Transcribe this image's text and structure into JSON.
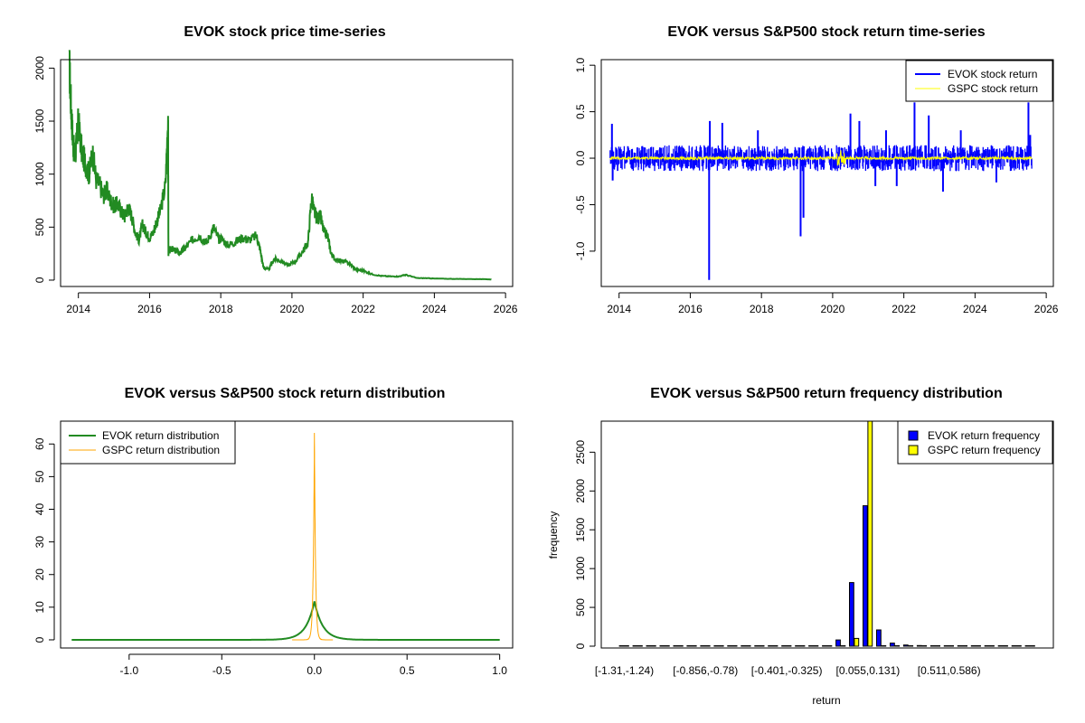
{
  "chart_data": [
    {
      "type": "line",
      "title": "EVOK stock price time-series",
      "xlabel": "",
      "ylabel": "",
      "xlim": [
        2013.5,
        2026.2
      ],
      "ylim": [
        -60,
        2080
      ],
      "x_ticks": [
        2014,
        2016,
        2018,
        2020,
        2022,
        2024,
        2026
      ],
      "y_ticks": [
        0,
        500,
        1000,
        1500,
        2000
      ],
      "colors": {
        "line": "#228B22"
      },
      "series": [
        {
          "x": [
            2013.75,
            2013.8,
            2013.85,
            2013.9,
            2013.95,
            2014.0,
            2014.1,
            2014.2,
            2014.3,
            2014.4,
            2014.5,
            2014.6,
            2014.7,
            2014.8,
            2014.9,
            2015.0,
            2015.1,
            2015.2,
            2015.3,
            2015.4,
            2015.5,
            2015.6,
            2015.7,
            2015.8,
            2015.9,
            2016.0,
            2016.1,
            2016.2,
            2016.3,
            2016.45,
            2016.52,
            2016.53,
            2016.6,
            2016.7,
            2016.85,
            2017.0,
            2017.2,
            2017.4,
            2017.6,
            2017.8,
            2017.95,
            2018.0,
            2018.2,
            2018.4,
            2018.6,
            2018.8,
            2019.0,
            2019.1,
            2019.2,
            2019.35,
            2019.5,
            2019.7,
            2019.9,
            2020.1,
            2020.3,
            2020.45,
            2020.55,
            2020.62,
            2020.7,
            2020.8,
            2020.9,
            2021.0,
            2021.1,
            2021.2,
            2021.4,
            2021.6,
            2021.8,
            2022.0,
            2022.2,
            2022.5,
            2022.8,
            2023.0,
            2023.2,
            2023.5,
            2023.8,
            2024.0,
            2024.5,
            2025.0,
            2025.5,
            2025.6
          ],
          "y": [
            2000,
            1600,
            1300,
            1150,
            1300,
            1500,
            1200,
            1100,
            1000,
            1200,
            950,
            900,
            800,
            850,
            750,
            700,
            720,
            650,
            600,
            700,
            600,
            450,
            380,
            520,
            450,
            400,
            450,
            550,
            650,
            900,
            1560,
            250,
            300,
            280,
            260,
            300,
            380,
            420,
            350,
            500,
            380,
            400,
            330,
            360,
            400,
            380,
            420,
            300,
            120,
            100,
            200,
            180,
            140,
            180,
            270,
            350,
            780,
            650,
            580,
            600,
            450,
            420,
            250,
            200,
            180,
            160,
            100,
            90,
            60,
            40,
            35,
            35,
            50,
            20,
            18,
            15,
            12,
            10,
            8,
            6
          ]
        }
      ]
    },
    {
      "type": "line",
      "title": "EVOK versus S&P500 stock return time-series",
      "xlabel": "",
      "ylabel": "",
      "xlim": [
        2013.5,
        2026.2
      ],
      "ylim": [
        -1.38,
        1.06
      ],
      "x_ticks": [
        2014,
        2016,
        2018,
        2020,
        2022,
        2024,
        2026
      ],
      "y_ticks": [
        -1.0,
        -0.5,
        0.0,
        0.5,
        1.0
      ],
      "y_tick_labels": [
        "-1.0",
        "-0.5",
        "0.0",
        "0.5",
        "1.0"
      ],
      "legend_position": "top-right",
      "colors": {
        "evok": "#0000FF",
        "gspc": "#FFFF00"
      },
      "series": [
        {
          "name": "EVOK stock return",
          "color": "#0000FF"
        },
        {
          "name": "GSPC stock return",
          "color": "#FFFF00"
        }
      ],
      "spikes": [
        {
          "x": 2013.8,
          "y": 0.37
        },
        {
          "x": 2013.82,
          "y": -0.24
        },
        {
          "x": 2016.55,
          "y": 0.4
        },
        {
          "x": 2016.53,
          "y": -1.31
        },
        {
          "x": 2016.9,
          "y": 0.38
        },
        {
          "x": 2017.9,
          "y": 0.3
        },
        {
          "x": 2019.1,
          "y": -0.84
        },
        {
          "x": 2019.18,
          "y": -0.64
        },
        {
          "x": 2020.5,
          "y": 0.48
        },
        {
          "x": 2020.75,
          "y": 0.4
        },
        {
          "x": 2021.2,
          "y": -0.3
        },
        {
          "x": 2021.5,
          "y": 0.3
        },
        {
          "x": 2021.8,
          "y": -0.3
        },
        {
          "x": 2022.3,
          "y": 0.6
        },
        {
          "x": 2022.7,
          "y": 0.46
        },
        {
          "x": 2023.1,
          "y": -0.36
        },
        {
          "x": 2023.6,
          "y": 0.3
        },
        {
          "x": 2024.6,
          "y": -0.26
        },
        {
          "x": 2025.5,
          "y": 0.6
        },
        {
          "x": 2025.55,
          "y": 0.25
        }
      ]
    },
    {
      "type": "line",
      "title": "EVOK versus S&P500 stock return distribution",
      "xlabel": "",
      "ylabel": "",
      "xlim": [
        -1.37,
        1.07
      ],
      "ylim": [
        -2.5,
        67
      ],
      "x_ticks": [
        -1.0,
        -0.5,
        0.0,
        0.5,
        1.0
      ],
      "x_tick_labels": [
        "-1.0",
        "-0.5",
        "0.0",
        "0.5",
        "1.0"
      ],
      "y_ticks": [
        0,
        10,
        20,
        30,
        40,
        50,
        60
      ],
      "legend_position": "top-left",
      "colors": {
        "evok": "#228B22",
        "gspc": "#FFA500"
      },
      "series": [
        {
          "name": "EVOK return distribution",
          "color": "#228B22",
          "range": [
            -1.31,
            1.0
          ],
          "peak": 11.8,
          "sd": 0.045
        },
        {
          "name": "GSPC return distribution",
          "color": "#FFA500",
          "range": [
            -0.12,
            0.1
          ],
          "peak": 64,
          "sd": 0.006
        }
      ]
    },
    {
      "type": "bar",
      "title": "EVOK versus S&P500 return frequency distribution",
      "xlabel": "return",
      "ylabel": "frequency",
      "ylim": [
        0,
        2900
      ],
      "y_ticks": [
        0,
        500,
        1000,
        1500,
        2000,
        2500
      ],
      "legend_position": "top-right",
      "colors": {
        "evok": "#0000FF",
        "gspc": "#FFFF00"
      },
      "x_tick_labels": [
        "[-1.31,-1.24)",
        "[-0.856,-0.78)",
        "[-0.401,-0.325)",
        "[0.055,0.131)",
        "[0.511,0.586)"
      ],
      "x_tick_bins": [
        0,
        6,
        12,
        18,
        24
      ],
      "bin_count": 31,
      "series": [
        {
          "name": "EVOK return frequency",
          "color": "#0000FF",
          "values": [
            1,
            0,
            0,
            0,
            0,
            0,
            0,
            1,
            0,
            0,
            0,
            0,
            0,
            1,
            2,
            5,
            80,
            820,
            1810,
            210,
            40,
            15,
            8,
            4,
            2,
            1,
            0,
            0,
            0,
            0,
            1
          ]
        },
        {
          "name": "GSPC return frequency",
          "color": "#FFFF00",
          "values": [
            0,
            0,
            0,
            0,
            0,
            0,
            0,
            0,
            0,
            0,
            0,
            0,
            0,
            0,
            0,
            0,
            0,
            100,
            2900,
            0,
            0,
            0,
            0,
            0,
            0,
            0,
            0,
            0,
            0,
            0,
            0
          ]
        }
      ]
    }
  ]
}
